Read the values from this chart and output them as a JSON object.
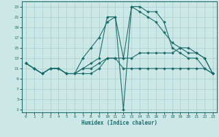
{
  "xlabel": "Humidex (Indice chaleur)",
  "ylabel": "",
  "bg_color": "#cce8e6",
  "grid_color": "#aacccc",
  "line_color": "#1a6b6b",
  "xlim": [
    -0.5,
    23.5
  ],
  "ylim": [
    2.5,
    24
  ],
  "xticks": [
    0,
    1,
    2,
    3,
    4,
    5,
    6,
    7,
    8,
    9,
    10,
    11,
    12,
    13,
    14,
    15,
    16,
    17,
    18,
    19,
    20,
    21,
    22,
    23
  ],
  "yticks": [
    3,
    5,
    7,
    9,
    11,
    13,
    15,
    17,
    19,
    21,
    23
  ],
  "lines": [
    {
      "x": [
        0,
        1,
        2,
        3,
        4,
        5,
        6,
        7,
        8,
        9,
        10,
        11,
        12,
        13,
        14,
        15,
        16,
        17,
        18,
        19,
        20,
        21,
        22,
        23
      ],
      "y": [
        12,
        11,
        10,
        11,
        11,
        10,
        10,
        10,
        10,
        11,
        13,
        13,
        11,
        11,
        11,
        11,
        11,
        11,
        11,
        11,
        11,
        11,
        11,
        10
      ]
    },
    {
      "x": [
        0,
        1,
        2,
        3,
        4,
        5,
        6,
        7,
        8,
        9,
        10,
        11,
        12,
        13,
        14,
        15,
        16,
        17,
        18,
        19,
        20,
        21,
        22,
        23
      ],
      "y": [
        12,
        11,
        10,
        11,
        11,
        10,
        10,
        11,
        12,
        13,
        21,
        21,
        3,
        23,
        22,
        21,
        20,
        18,
        16,
        15,
        15,
        14,
        13,
        10
      ]
    },
    {
      "x": [
        0,
        1,
        2,
        3,
        4,
        5,
        6,
        7,
        8,
        9,
        10,
        11,
        12,
        13,
        14,
        15,
        16,
        17,
        18,
        19,
        20,
        21,
        22,
        23
      ],
      "y": [
        12,
        11,
        10,
        11,
        11,
        10,
        10,
        13,
        15,
        17,
        20,
        21,
        13,
        23,
        23,
        22,
        22,
        20,
        15,
        14,
        13,
        13,
        11,
        10
      ]
    },
    {
      "x": [
        0,
        1,
        2,
        3,
        4,
        5,
        6,
        7,
        8,
        9,
        10,
        11,
        12,
        13,
        14,
        15,
        16,
        17,
        18,
        19,
        20,
        21,
        22,
        23
      ],
      "y": [
        12,
        11,
        10,
        11,
        11,
        10,
        10,
        11,
        11,
        12,
        13,
        13,
        13,
        13,
        14,
        14,
        14,
        14,
        14,
        15,
        14,
        14,
        13,
        10
      ]
    }
  ]
}
